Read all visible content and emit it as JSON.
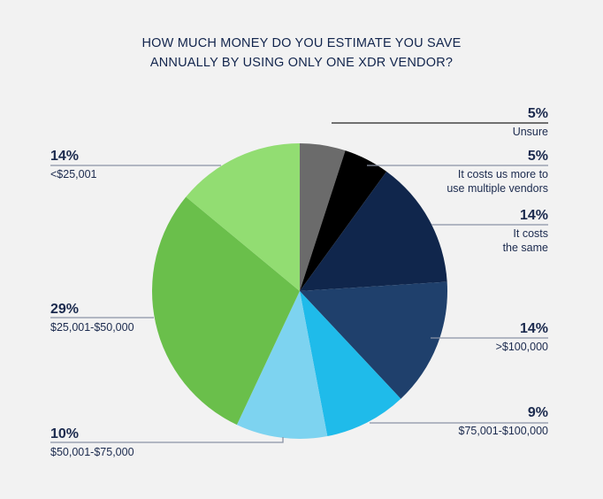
{
  "chart_data": {
    "type": "pie",
    "title": "HOW MUCH MONEY DO YOU ESTIMATE YOU SAVE ANNUALLY BY USING ONLY ONE XDR VENDOR?",
    "title_lines": [
      "HOW MUCH MONEY DO YOU ESTIMATE YOU SAVE",
      "ANNUALLY BY USING ONLY ONE XDR VENDOR?"
    ],
    "start": "12 o'clock, clockwise",
    "slices": [
      {
        "label": "Unsure",
        "lines": [
          "Unsure"
        ],
        "value": 5,
        "pct": "5%",
        "color": "#6b6b6b"
      },
      {
        "label": "It costs us more to use multiple vendors",
        "lines": [
          "It costs us more to",
          "use multiple vendors"
        ],
        "value": 5,
        "pct": "5%",
        "color": "#000000"
      },
      {
        "label": "It costs the same",
        "lines": [
          "It costs",
          "the same"
        ],
        "value": 14,
        "pct": "14%",
        "color": "#10264c"
      },
      {
        "label": ">$100,000",
        "lines": [
          ">$100,000"
        ],
        "value": 14,
        "pct": "14%",
        "color": "#1f406c"
      },
      {
        "label": "$75,001-$100,000",
        "lines": [
          "$75,001-$100,000"
        ],
        "value": 9,
        "pct": "9%",
        "color": "#1fbbea"
      },
      {
        "label": "$50,001-$75,000",
        "lines": [
          "$50,001-$75,000"
        ],
        "value": 10,
        "pct": "10%",
        "color": "#7dd3f0"
      },
      {
        "label": "$25,001-$50,000",
        "lines": [
          "$25,001-$50,000"
        ],
        "value": 29,
        "pct": "29%",
        "color": "#6abf4b"
      },
      {
        "label": "<$25,001",
        "lines": [
          "<$25,001"
        ],
        "value": 14,
        "pct": "14%",
        "color": "#92dd72"
      }
    ]
  }
}
